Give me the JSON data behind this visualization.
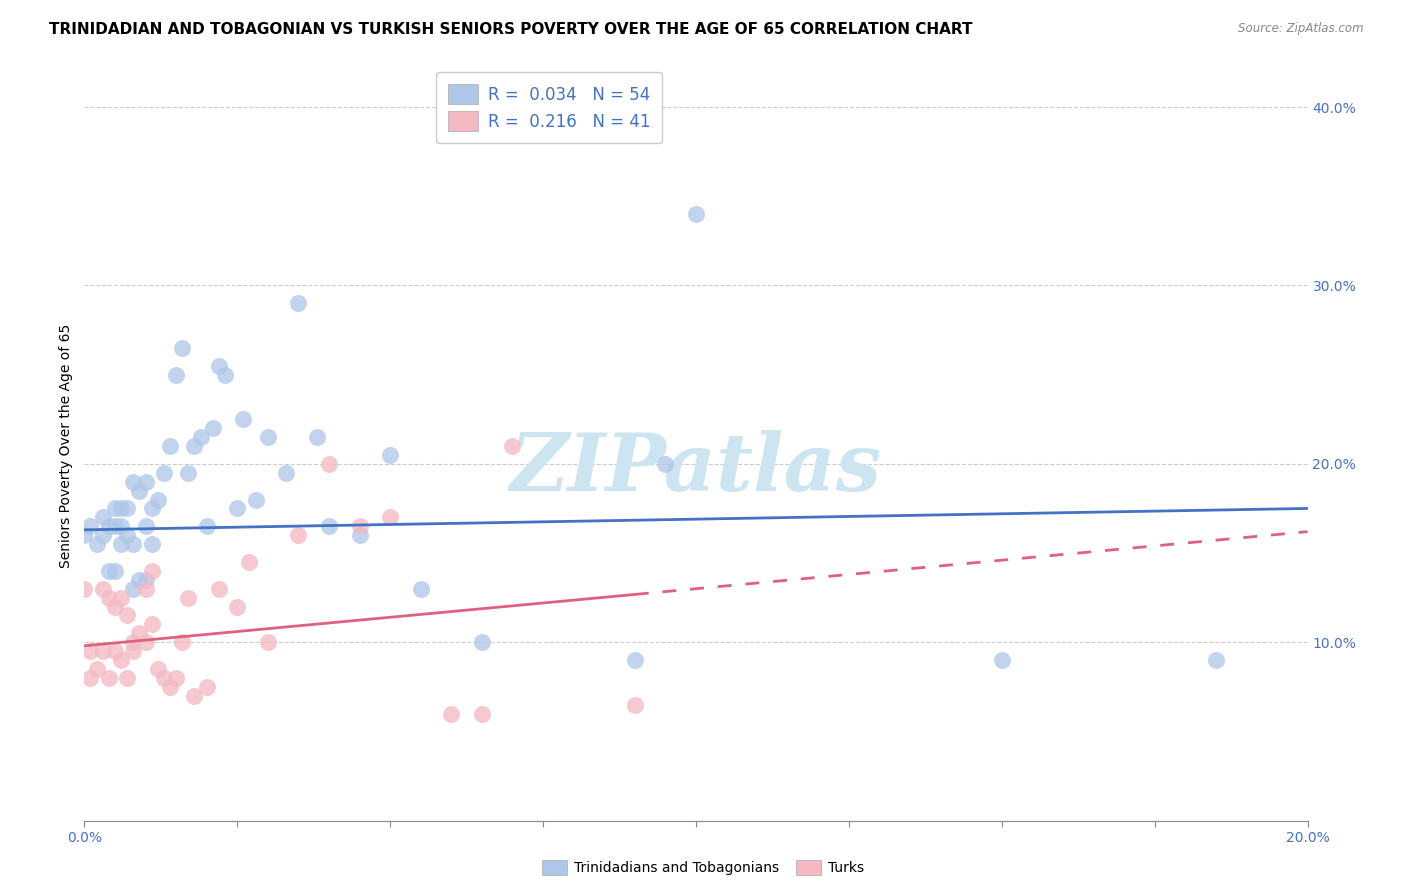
{
  "title": "TRINIDADIAN AND TOBAGONIAN VS TURKISH SENIORS POVERTY OVER THE AGE OF 65 CORRELATION CHART",
  "source": "Source: ZipAtlas.com",
  "ylabel": "Seniors Poverty Over the Age of 65",
  "xlim": [
    0.0,
    0.2
  ],
  "ylim": [
    0.0,
    0.42
  ],
  "xticks": [
    0.0,
    0.025,
    0.05,
    0.075,
    0.1,
    0.125,
    0.15,
    0.175,
    0.2
  ],
  "ytick_positions": [
    0.0,
    0.1,
    0.2,
    0.3,
    0.4
  ],
  "ytick_labels": [
    "",
    "10.0%",
    "20.0%",
    "30.0%",
    "40.0%"
  ],
  "legend1_label": "R =  0.034   N = 54",
  "legend2_label": "R =  0.216   N = 41",
  "legend1_color": "#aec6e8",
  "legend2_color": "#f4b8c1",
  "scatter1_color": "#aec6e8",
  "scatter2_color": "#f4b8c1",
  "line1_color": "#4472c4",
  "line2_color": "#e06080",
  "watermark": "ZIPatlas",
  "watermark_color": "#cce5f0",
  "title_fontsize": 11,
  "axis_label_fontsize": 10,
  "tick_fontsize": 10,
  "tick_color": "#4472c4",
  "legend_label1": "Trinidadians and Tobagonians",
  "legend_label2": "Turks",
  "tnt_x": [
    0.0,
    0.001,
    0.002,
    0.003,
    0.003,
    0.004,
    0.004,
    0.005,
    0.005,
    0.005,
    0.006,
    0.006,
    0.006,
    0.007,
    0.007,
    0.008,
    0.008,
    0.008,
    0.009,
    0.009,
    0.01,
    0.01,
    0.01,
    0.011,
    0.011,
    0.012,
    0.013,
    0.014,
    0.015,
    0.016,
    0.017,
    0.018,
    0.019,
    0.02,
    0.021,
    0.022,
    0.023,
    0.025,
    0.026,
    0.028,
    0.03,
    0.033,
    0.035,
    0.038,
    0.04,
    0.045,
    0.05,
    0.055,
    0.065,
    0.09,
    0.095,
    0.1,
    0.15,
    0.185
  ],
  "tnt_y": [
    0.16,
    0.165,
    0.155,
    0.16,
    0.17,
    0.14,
    0.165,
    0.14,
    0.165,
    0.175,
    0.155,
    0.165,
    0.175,
    0.16,
    0.175,
    0.13,
    0.155,
    0.19,
    0.135,
    0.185,
    0.135,
    0.165,
    0.19,
    0.155,
    0.175,
    0.18,
    0.195,
    0.21,
    0.25,
    0.265,
    0.195,
    0.21,
    0.215,
    0.165,
    0.22,
    0.255,
    0.25,
    0.175,
    0.225,
    0.18,
    0.215,
    0.195,
    0.29,
    0.215,
    0.165,
    0.16,
    0.205,
    0.13,
    0.1,
    0.09,
    0.2,
    0.34,
    0.09,
    0.09
  ],
  "turks_x": [
    0.0,
    0.001,
    0.001,
    0.002,
    0.003,
    0.003,
    0.004,
    0.004,
    0.005,
    0.005,
    0.006,
    0.006,
    0.007,
    0.007,
    0.008,
    0.008,
    0.009,
    0.01,
    0.01,
    0.011,
    0.011,
    0.012,
    0.013,
    0.014,
    0.015,
    0.016,
    0.017,
    0.018,
    0.02,
    0.022,
    0.025,
    0.027,
    0.03,
    0.035,
    0.04,
    0.045,
    0.05,
    0.06,
    0.065,
    0.07,
    0.09
  ],
  "turks_y": [
    0.13,
    0.095,
    0.08,
    0.085,
    0.095,
    0.13,
    0.08,
    0.125,
    0.095,
    0.12,
    0.09,
    0.125,
    0.08,
    0.115,
    0.095,
    0.1,
    0.105,
    0.1,
    0.13,
    0.14,
    0.11,
    0.085,
    0.08,
    0.075,
    0.08,
    0.1,
    0.125,
    0.07,
    0.075,
    0.13,
    0.12,
    0.145,
    0.1,
    0.16,
    0.2,
    0.165,
    0.17,
    0.06,
    0.06,
    0.21,
    0.065
  ]
}
